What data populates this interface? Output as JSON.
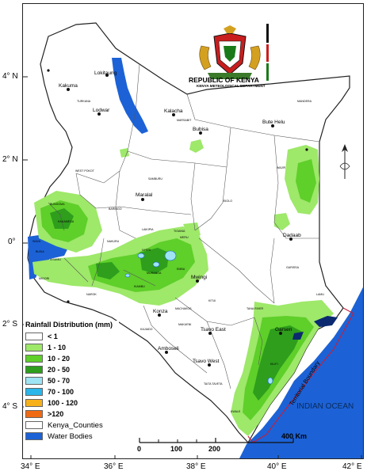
{
  "map": {
    "header": {
      "title": "REPUBLIC OF KENYA",
      "subtitle": "KENYA METEOLOGICAL DEPARTMENT"
    },
    "lat_labels": [
      "4° N",
      "2° N",
      "0°",
      "2° S",
      "4° S"
    ],
    "lon_labels": [
      "34° E",
      "36° E",
      "38° E",
      "40° E",
      "42° E"
    ],
    "cities": [
      "Lokitaung",
      "Kakuma",
      "Lodwar",
      "Kalacha",
      "Bubisa",
      "Bute Helu",
      "Maralal",
      "Dadaab",
      "Mwingi",
      "Konza",
      "Tsavo East",
      "Garsen",
      "Amboseli",
      "Tsavo West"
    ],
    "counties": [
      "TURKANA",
      "MARSABIT",
      "MANDERA",
      "WAJIR",
      "WEST POKOT",
      "SAMBURU",
      "ISIOLO",
      "GARISSA",
      "LAIKIPIA",
      "BARINGO",
      "NAKURU",
      "NAROK",
      "KAJIADO",
      "MACHAKOS",
      "KITUI",
      "MAKUENI",
      "TANA RIVER",
      "TAITA TAVETA",
      "LAMU",
      "KILIFI",
      "KWALE",
      "BUSIA",
      "BUNGOMA",
      "KAKAMEGA",
      "SIAYA",
      "KISUMU",
      "MIGORI",
      "MERU",
      "TIGANIA",
      "EMBU",
      "MURANGA",
      "NYERI",
      "KIAMBU"
    ],
    "ocean_label": "INDIAN OCEAN",
    "boundary_label": "Territorial Boundary",
    "scale": {
      "ticks": [
        "0",
        "100",
        "200",
        "400 Km"
      ]
    },
    "legend": {
      "title": "Rainfall Distribution (mm)",
      "items": [
        {
          "label": "< 1",
          "color": "#ffffff"
        },
        {
          "label": "1 - 10",
          "color": "#9ee86a"
        },
        {
          "label": "10 - 20",
          "color": "#5fcf2a"
        },
        {
          "label": "20 - 50",
          "color": "#2e9e1c"
        },
        {
          "label": "50 - 70",
          "color": "#9fe4f4"
        },
        {
          "label": "70 - 100",
          "color": "#29b6ea"
        },
        {
          "label": "100 - 120",
          "color": "#f7b21b"
        },
        {
          "label": ">120",
          "color": "#f06a14"
        }
      ],
      "extra": [
        {
          "label": "Kenya_Counties",
          "color": "#ffffff"
        },
        {
          "label": "Water Bodies",
          "color": "#1c62d6"
        }
      ]
    },
    "colors": {
      "water": "#1c62d6",
      "light_green": "#9ee86a",
      "mid_green": "#5fcf2a",
      "dark_green": "#2e9e1c",
      "boundary": "#c41e3a"
    }
  }
}
